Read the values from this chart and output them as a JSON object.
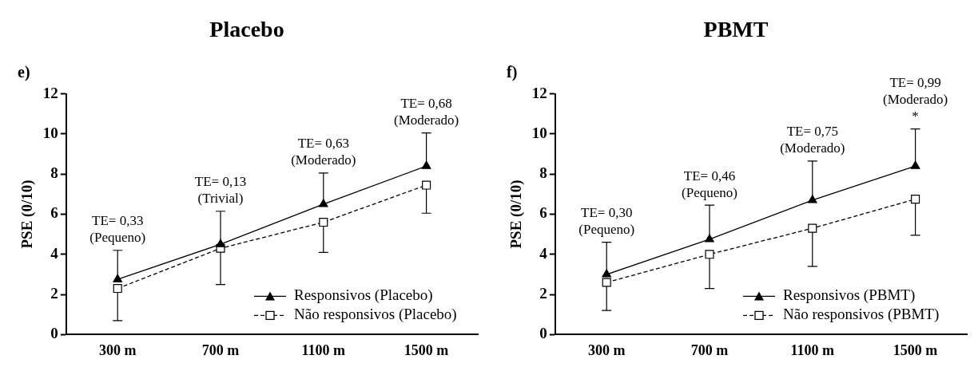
{
  "chart_data": [
    {
      "type": "line",
      "title": "Placebo",
      "ylabel": "PSE (0/10)",
      "categories": [
        "300 m",
        "700 m",
        "1100 m",
        "1500 m"
      ],
      "series": [
        {
          "name": "Responsivos (Placebo)",
          "color": "#000000",
          "marker": "triangle",
          "line_style": "solid",
          "values": [
            2.75,
            4.5,
            6.5,
            8.4
          ],
          "errors": [
            [
              2.75,
              4.2
            ],
            [
              4.5,
              6.15
            ],
            [
              6.5,
              8.05
            ],
            [
              8.4,
              10.05
            ]
          ]
        },
        {
          "name": "Não responsivos (Placebo)",
          "color": "#000000",
          "marker": "square",
          "line_style": "dashed",
          "values": [
            2.3,
            4.3,
            5.6,
            7.45
          ],
          "errors": [
            [
              0.7,
              2.3
            ],
            [
              2.5,
              4.3
            ],
            [
              4.1,
              5.6
            ],
            [
              6.05,
              7.45
            ]
          ]
        }
      ],
      "ylim": [
        0,
        12
      ],
      "yticks": [
        0,
        2,
        4,
        6,
        8,
        10,
        12
      ],
      "grid": false,
      "legend": "bottom right",
      "annotations": [
        "e)",
        {
          "text": "TE= 0,33\n(Pequeno)",
          "x": "300 m",
          "y": 4.2
        },
        {
          "text": "TE= 0,13\n(Trivial)",
          "x": "700 m",
          "y": 6.15
        },
        {
          "text": "TE= 0,63\n(Moderado)",
          "x": "1100 m",
          "y": 8.05
        },
        {
          "text": "TE= 0,68\n(Moderado)",
          "x": "1500 m",
          "y": 10.05
        }
      ]
    },
    {
      "type": "line",
      "title": "PBMT",
      "ylabel": "PSE (0/10)",
      "categories": [
        "300 m",
        "700 m",
        "1100 m",
        "1500 m"
      ],
      "series": [
        {
          "name": "Responsivos (PBMT)",
          "color": "#000000",
          "marker": "triangle",
          "line_style": "solid",
          "values": [
            3.0,
            4.75,
            6.7,
            8.4
          ],
          "errors": [
            [
              3.0,
              4.6
            ],
            [
              4.75,
              6.45
            ],
            [
              6.7,
              8.65
            ],
            [
              8.4,
              10.25
            ]
          ]
        },
        {
          "name": "Não responsivos (PBMT)",
          "color": "#000000",
          "marker": "square",
          "line_style": "dashed",
          "values": [
            2.6,
            4.0,
            5.3,
            6.75
          ],
          "errors": [
            [
              1.2,
              2.6
            ],
            [
              2.3,
              4.0
            ],
            [
              3.4,
              5.3
            ],
            [
              4.95,
              6.75
            ]
          ]
        }
      ],
      "ylim": [
        0,
        12
      ],
      "yticks": [
        0,
        2,
        4,
        6,
        8,
        10,
        12
      ],
      "grid": false,
      "legend": "bottom right",
      "annotations": [
        "f)",
        {
          "text": "TE= 0,30\n(Pequeno)",
          "x": "300 m",
          "y": 4.6
        },
        {
          "text": "TE= 0,46\n(Pequeno)",
          "x": "700 m",
          "y": 6.45
        },
        {
          "text": "TE= 0,75\n(Moderado)",
          "x": "1100 m",
          "y": 8.65
        },
        {
          "text": "*",
          "x": "1500 m",
          "y": 10.25
        },
        {
          "text": "TE= 0,99\n(Moderado)",
          "x": "1500 m",
          "y": 10.25
        }
      ]
    }
  ]
}
